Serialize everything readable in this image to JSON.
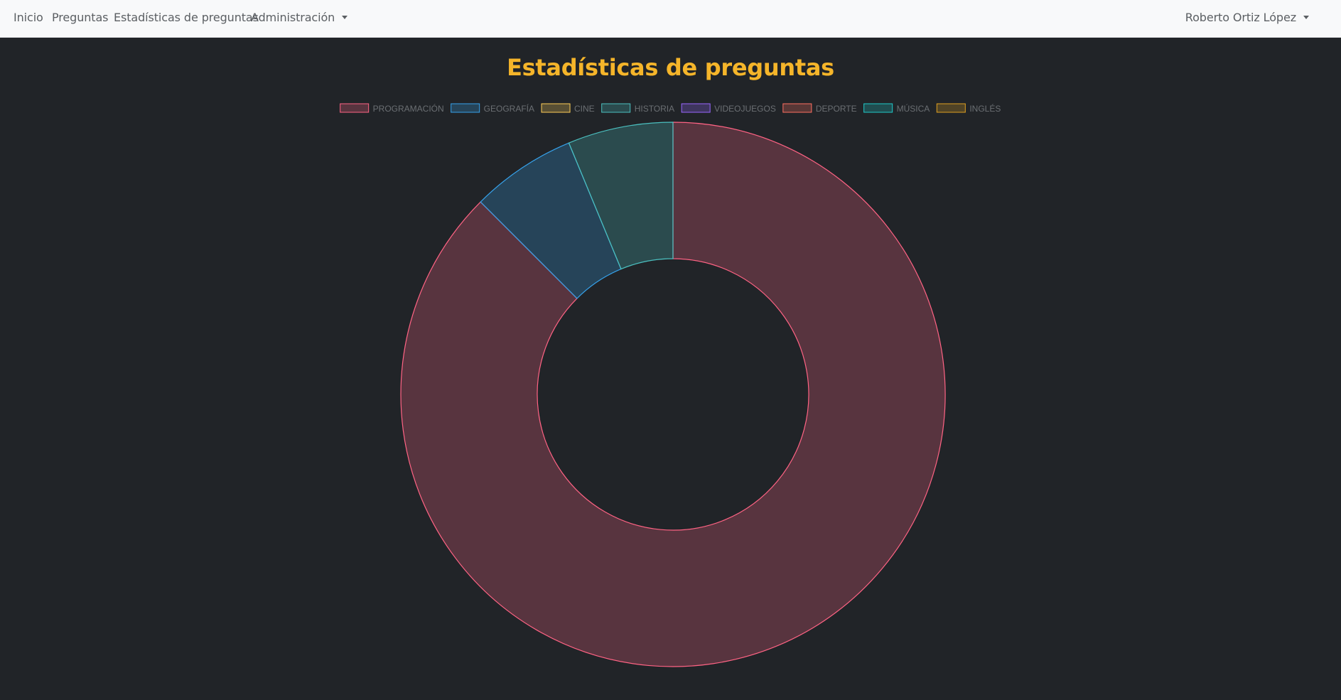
{
  "navbar": {
    "items": [
      {
        "label": "Inicio"
      },
      {
        "label": "Preguntas"
      },
      {
        "label": "Estadísticas de preguntas"
      },
      {
        "label": "Administración"
      }
    ],
    "user_menu": "Roberto Ortiz López"
  },
  "page": {
    "title": "Estadísticas de preguntas"
  },
  "colors": {
    "navbar_bg": "#f8f9fa",
    "page_bg": "#212428",
    "title": "#f5b52a"
  },
  "chart_data": {
    "type": "pie",
    "variant": "doughnut",
    "legend_position": "top",
    "categories": [
      "PROGRAMACIÓN",
      "GEOGRAFÍA",
      "CINE",
      "HISTORIA",
      "VIDEOJUEGOS",
      "DEPORTE",
      "MÚSICA",
      "INGLÉS"
    ],
    "values": [
      14,
      1,
      0,
      1,
      0,
      0,
      0,
      0
    ],
    "border_colors": [
      "#ff6384",
      "#36a2eb",
      "#ffce56",
      "#4bc0c0",
      "#9966ff",
      "#ff6f61",
      "#1ec9c9",
      "#e0a020"
    ]
  }
}
